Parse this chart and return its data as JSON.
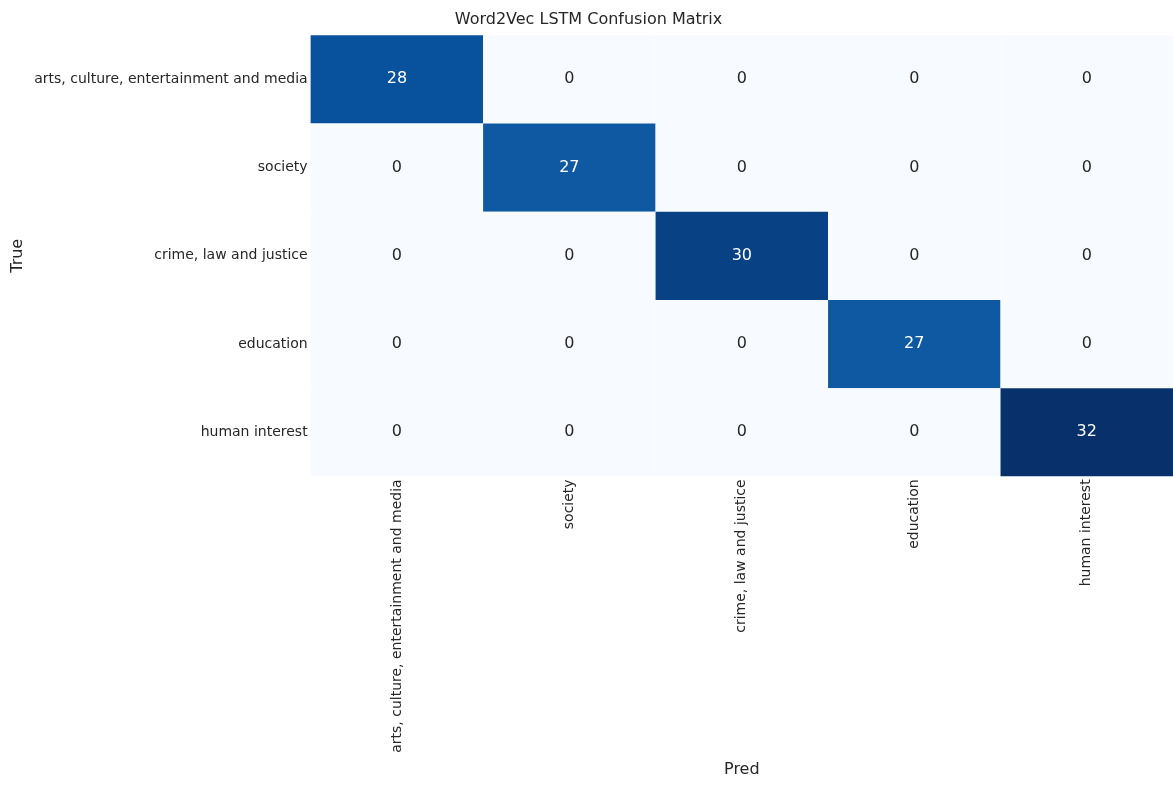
{
  "chart_data": {
    "type": "heatmap",
    "title": "Word2Vec LSTM Confusion Matrix",
    "xlabel": "Pred",
    "ylabel": "True",
    "categories": [
      "arts, culture, entertainment and media",
      "society",
      "crime, law and justice",
      "education",
      "human interest"
    ],
    "y_categories": [
      "arts, culture, entertainment and media",
      "society",
      "crime, law and justice",
      "education",
      "human interest"
    ],
    "cells": [
      [
        28,
        0,
        0,
        0,
        0
      ],
      [
        0,
        27,
        0,
        0,
        0
      ],
      [
        0,
        0,
        30,
        0,
        0
      ],
      [
        0,
        0,
        0,
        27,
        0
      ],
      [
        0,
        0,
        0,
        0,
        32
      ]
    ],
    "data_labels": true
  }
}
